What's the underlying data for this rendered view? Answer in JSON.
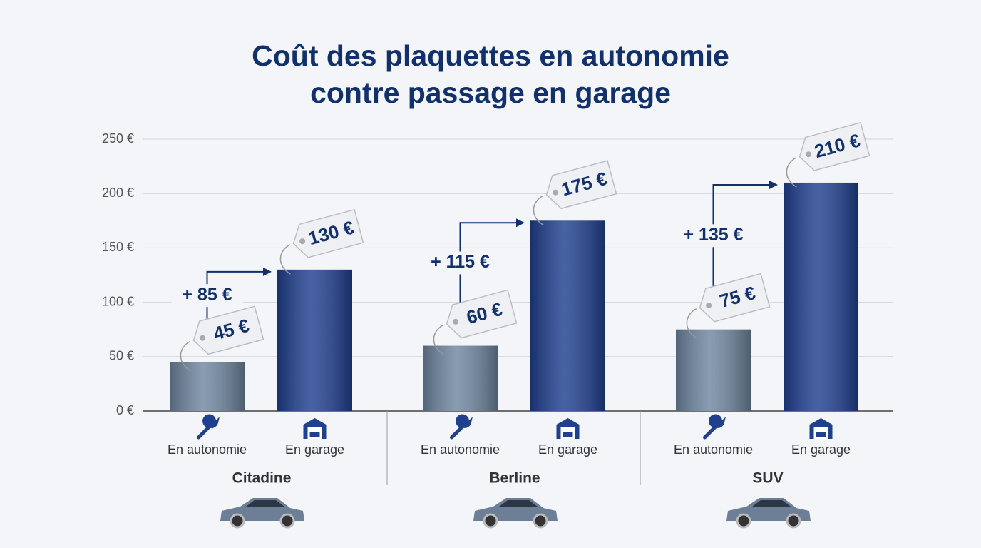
{
  "chart_data": {
    "type": "bar",
    "title": "Coût des plaquettes en autonomie contre passage en garage",
    "categories": [
      "Citadine",
      "Berline",
      "SUV"
    ],
    "series": [
      {
        "name": "En autonomie",
        "color": "#6f86a0",
        "values": [
          45,
          60,
          75
        ],
        "value_labels": [
          "45 €",
          "60 €",
          "75 €"
        ]
      },
      {
        "name": "En garage",
        "color": "#1f3f8f",
        "values": [
          130,
          175,
          210
        ],
        "value_labels": [
          "130 €",
          "175 €",
          "210 €"
        ]
      }
    ],
    "annotations": [
      "+ 85 €",
      "+ 115 €",
      "+ 135 €"
    ],
    "ylim": [
      0,
      250
    ],
    "yticks": [
      {
        "value": 0,
        "label": "0 €"
      },
      {
        "value": 50,
        "label": "50 €"
      },
      {
        "value": 100,
        "label": "100 €"
      },
      {
        "value": 150,
        "label": "150 €"
      },
      {
        "value": 200,
        "label": "200 €"
      },
      {
        "value": 250,
        "label": "250 €"
      }
    ],
    "grid": true
  }
}
